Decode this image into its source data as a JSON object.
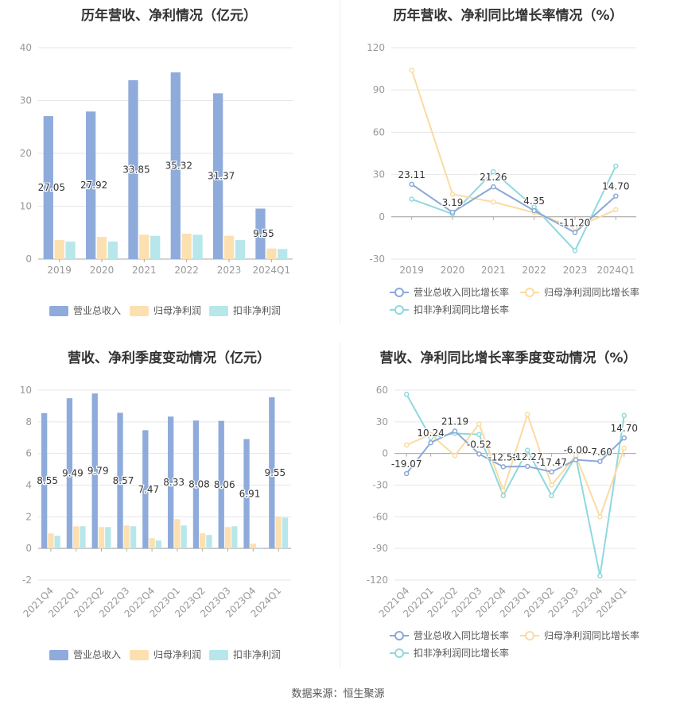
{
  "colors": {
    "revenue": "#8eabdb",
    "net_profit": "#fde0b0",
    "deducted_profit": "#b7e7ea",
    "revenue_line": "#8ba8d8",
    "net_line": "#fbdba1",
    "deducted_line": "#8fd9de",
    "grid": "#e6e6e6",
    "axis_text": "#999999",
    "label_text": "#333333"
  },
  "footer": "数据来源：恒生聚源",
  "chart_data": [
    {
      "id": "annual_bar",
      "type": "bar",
      "title": "历年营收、净利情况（亿元）",
      "categories": [
        "2019",
        "2020",
        "2021",
        "2022",
        "2023",
        "2024Q1"
      ],
      "ylim": [
        0,
        40
      ],
      "yticks": [
        0,
        10,
        20,
        30,
        40
      ],
      "series": [
        {
          "name": "营业总收入",
          "values": [
            27.05,
            27.92,
            33.85,
            35.32,
            31.37,
            9.55
          ],
          "labels": [
            "27.05",
            "27.92",
            "33.85",
            "35.32",
            "31.37",
            "9.55"
          ]
        },
        {
          "name": "归母净利润",
          "values": [
            3.6,
            4.2,
            4.6,
            4.8,
            4.4,
            2.0
          ]
        },
        {
          "name": "扣非净利润",
          "values": [
            3.3,
            3.3,
            4.4,
            4.6,
            3.6,
            1.9
          ]
        }
      ],
      "legend": "bottom",
      "grid": true
    },
    {
      "id": "annual_line",
      "type": "line",
      "title": "历年营收、净利同比增长率情况（%）",
      "categories": [
        "2019",
        "2020",
        "2021",
        "2022",
        "2023",
        "2024Q1"
      ],
      "ylim": [
        -30,
        120
      ],
      "yticks": [
        -30,
        0,
        30,
        60,
        90,
        120
      ],
      "series": [
        {
          "name": "营业总收入同比增长率",
          "values": [
            23.11,
            3.19,
            21.26,
            4.35,
            -11.2,
            14.7
          ],
          "labels": [
            "23.11",
            "3.19",
            "21.26",
            "4.35",
            "-11.20",
            "14.70"
          ]
        },
        {
          "name": "归母净利润同比增长率",
          "values": [
            104.0,
            16.0,
            10.5,
            3.0,
            -8.0,
            5.0
          ]
        },
        {
          "name": "扣非净利润同比增长率",
          "values": [
            12.5,
            2.0,
            32.0,
            7.0,
            -24.0,
            36.0
          ]
        }
      ],
      "legend": "bottom",
      "grid": true
    },
    {
      "id": "quarter_bar",
      "type": "bar",
      "title": "营收、净利季度变动情况（亿元）",
      "categories": [
        "2021Q4",
        "2022Q1",
        "2022Q2",
        "2022Q3",
        "2022Q4",
        "2023Q1",
        "2023Q2",
        "2023Q3",
        "2023Q4",
        "2024Q1"
      ],
      "ylim": [
        -2,
        10
      ],
      "yticks": [
        -2,
        0,
        2,
        4,
        6,
        8,
        10
      ],
      "series": [
        {
          "name": "营业总收入",
          "values": [
            8.55,
            9.49,
            9.79,
            8.57,
            7.47,
            8.33,
            8.08,
            8.06,
            6.91,
            9.55
          ],
          "labels": [
            "8.55",
            "9.49",
            "9.79",
            "8.57",
            "7.47",
            "8.33",
            "8.08",
            "8.06",
            "6.91",
            "9.55"
          ]
        },
        {
          "name": "归母净利润",
          "values": [
            0.95,
            1.4,
            1.35,
            1.45,
            0.65,
            1.85,
            0.95,
            1.35,
            0.3,
            2.0
          ]
        },
        {
          "name": "扣非净利润",
          "values": [
            0.8,
            1.4,
            1.35,
            1.4,
            0.5,
            1.45,
            0.85,
            1.4,
            -0.05,
            1.95
          ]
        }
      ],
      "legend": "bottom",
      "grid": true
    },
    {
      "id": "quarter_line",
      "type": "line",
      "title": "营收、净利同比增长率季度变动情况（%）",
      "categories": [
        "2021Q4",
        "2022Q1",
        "2022Q2",
        "2022Q3",
        "2022Q4",
        "2023Q1",
        "2023Q2",
        "2023Q3",
        "2023Q4",
        "2024Q1"
      ],
      "ylim": [
        -120,
        60
      ],
      "yticks": [
        -120,
        -90,
        -60,
        -30,
        0,
        30,
        60
      ],
      "series": [
        {
          "name": "营业总收入同比增长率",
          "values": [
            -19.07,
            10.24,
            21.19,
            -0.52,
            -12.58,
            -12.27,
            -17.47,
            -6.0,
            -7.6,
            14.7
          ],
          "labels": [
            "-19.07",
            "10.24",
            "21.19",
            "-0.52",
            "-12.58",
            "-12.27",
            "-17.47",
            "-6.00",
            "-7.60",
            "14.70"
          ]
        },
        {
          "name": "归母净利润同比增长率",
          "values": [
            8.0,
            18.0,
            -2.0,
            28.0,
            -35.0,
            37.0,
            -30.0,
            -2.0,
            -60.0,
            5.0
          ]
        },
        {
          "name": "扣非净利润同比增长率",
          "values": [
            56.0,
            15.0,
            19.0,
            18.0,
            -40.0,
            3.0,
            -40.0,
            -3.0,
            -116.0,
            36.0
          ]
        }
      ],
      "legend": "bottom",
      "grid": true
    }
  ]
}
